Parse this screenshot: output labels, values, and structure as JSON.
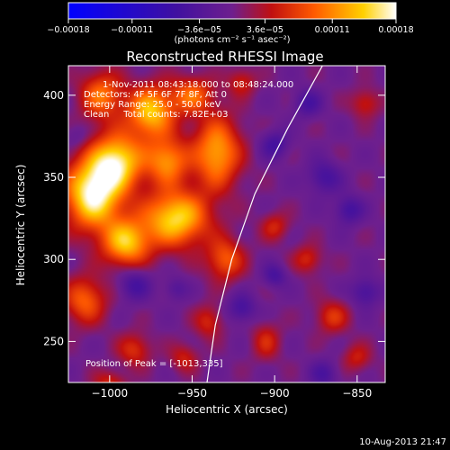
{
  "chart_data": {
    "type": "heatmap",
    "title": "Reconstructed RHESSI Image",
    "xlabel": "Heliocentric X (arcsec)",
    "ylabel": "Heliocentric Y (arcsec)",
    "xlim": [
      -1025,
      -833
    ],
    "ylim": [
      225,
      418
    ],
    "x_ticks": [
      -1000,
      -950,
      -900,
      -850
    ],
    "y_ticks": [
      250,
      300,
      350,
      400
    ],
    "colorbar": {
      "range": [
        -0.00018,
        0.00018
      ],
      "tick_values": [
        -0.00018,
        -0.00011,
        -3.6e-05,
        3.6e-05,
        0.00011,
        0.00018
      ],
      "tick_labels": [
        "-0.00018",
        "-0.00011",
        "-3.6e-05",
        "3.6e-05",
        "0.00011",
        "0.00018"
      ],
      "unit_label": "(photons cm⁻² s⁻¹ asec⁻²)"
    },
    "annotations": [
      "1-Nov-2011 08:43:18.000 to 08:48:24.000",
      "Detectors: 4F 5F 6F 7F 8F, Att 0",
      "Energy Range: 25.0 - 50.0 keV",
      "Clean     Total counts: 7.82E+03"
    ],
    "peak_label": "Position of Peak = [-1013,335]",
    "peak": {
      "x": -1013,
      "y": 335
    },
    "limb_curve": [
      [
        -871,
        418
      ],
      [
        -892,
        380
      ],
      [
        -912,
        340
      ],
      [
        -926,
        300
      ],
      [
        -936,
        260
      ],
      [
        -941,
        225
      ]
    ],
    "sources": [
      {
        "x": -1010,
        "y": 340,
        "sx": 12,
        "sy": 15,
        "a": 1.0
      },
      {
        "x": -995,
        "y": 360,
        "sx": 11,
        "sy": 12,
        "a": 0.82
      },
      {
        "x": -975,
        "y": 390,
        "sx": 10,
        "sy": 11,
        "a": 0.78
      },
      {
        "x": -990,
        "y": 310,
        "sx": 10,
        "sy": 10,
        "a": 0.75
      },
      {
        "x": -960,
        "y": 325,
        "sx": 14,
        "sy": 12,
        "a": 0.85
      },
      {
        "x": -965,
        "y": 360,
        "sx": 9,
        "sy": 10,
        "a": 0.62
      },
      {
        "x": -935,
        "y": 365,
        "sx": 10,
        "sy": 15,
        "a": 0.7
      },
      {
        "x": -930,
        "y": 300,
        "sx": 8,
        "sy": 9,
        "a": 0.48
      },
      {
        "x": -1005,
        "y": 400,
        "sx": 9,
        "sy": 10,
        "a": 0.55
      },
      {
        "x": -950,
        "y": 400,
        "sx": 9,
        "sy": 8,
        "a": 0.5
      },
      {
        "x": -1015,
        "y": 275,
        "sx": 9,
        "sy": 10,
        "a": 0.5
      },
      {
        "x": -985,
        "y": 245,
        "sx": 7,
        "sy": 7,
        "a": 0.35
      },
      {
        "x": -900,
        "y": 320,
        "sx": 6,
        "sy": 6,
        "a": 0.3
      },
      {
        "x": -880,
        "y": 300,
        "sx": 6,
        "sy": 6,
        "a": 0.32
      },
      {
        "x": -865,
        "y": 265,
        "sx": 7,
        "sy": 7,
        "a": 0.35
      },
      {
        "x": -845,
        "y": 395,
        "sx": 6,
        "sy": 6,
        "a": 0.3
      },
      {
        "x": -850,
        "y": 240,
        "sx": 6,
        "sy": 6,
        "a": 0.28
      },
      {
        "x": -905,
        "y": 250,
        "sx": 6,
        "sy": 8,
        "a": 0.3
      },
      {
        "x": -940,
        "y": 262,
        "sx": 6,
        "sy": 7,
        "a": 0.32
      },
      {
        "x": -955,
        "y": 240,
        "sx": 6,
        "sy": 6,
        "a": 0.28
      },
      {
        "x": -920,
        "y": 408,
        "sx": 6,
        "sy": 6,
        "a": 0.3
      },
      {
        "x": -1000,
        "y": 225,
        "sx": 7,
        "sy": 5,
        "a": 0.3
      },
      {
        "x": -985,
        "y": 285,
        "sx": 7,
        "sy": 7,
        "a": -0.3
      },
      {
        "x": -870,
        "y": 350,
        "sx": 7,
        "sy": 7,
        "a": -0.3
      },
      {
        "x": -855,
        "y": 330,
        "sx": 6,
        "sy": 6,
        "a": -0.32
      },
      {
        "x": -900,
        "y": 370,
        "sx": 6,
        "sy": 6,
        "a": -0.3
      },
      {
        "x": -880,
        "y": 395,
        "sx": 6,
        "sy": 6,
        "a": -0.28
      },
      {
        "x": -920,
        "y": 270,
        "sx": 6,
        "sy": 6,
        "a": -0.3
      },
      {
        "x": -870,
        "y": 230,
        "sx": 6,
        "sy": 6,
        "a": -0.25
      },
      {
        "x": -845,
        "y": 280,
        "sx": 6,
        "sy": 6,
        "a": -0.3
      },
      {
        "x": -900,
        "y": 290,
        "sx": 5,
        "sy": 5,
        "a": -0.28
      },
      {
        "x": -960,
        "y": 282,
        "sx": 5,
        "sy": 5,
        "a": -0.2
      },
      {
        "x": -1020,
        "y": 375,
        "sx": 5,
        "sy": 5,
        "a": -0.15
      }
    ]
  },
  "footer": {
    "timestamp": "10-Aug-2013 21:47"
  }
}
